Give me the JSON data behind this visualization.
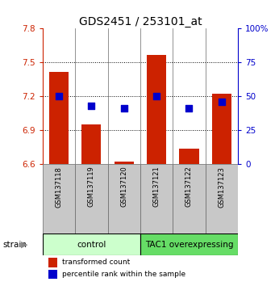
{
  "title": "GDS2451 / 253101_at",
  "samples": [
    "GSM137118",
    "GSM137119",
    "GSM137120",
    "GSM137121",
    "GSM137122",
    "GSM137123"
  ],
  "bar_values": [
    7.42,
    6.95,
    6.62,
    7.57,
    6.74,
    7.22
  ],
  "bar_bottom": 6.6,
  "percentile_values": [
    50,
    43,
    41,
    50,
    41,
    46
  ],
  "percentile_scale_min": 0,
  "percentile_scale_max": 100,
  "ylim_left": [
    6.6,
    7.8
  ],
  "yticks_left": [
    6.6,
    6.9,
    7.2,
    7.5,
    7.8
  ],
  "yticks_right": [
    0,
    25,
    50,
    75,
    100
  ],
  "yticks_right_labels": [
    "0",
    "25",
    "50",
    "75",
    "100%"
  ],
  "bar_color": "#CC2200",
  "dot_color": "#0000CC",
  "group1_label": "control",
  "group2_label": "TAC1 overexpressing",
  "group1_color": "#CCFFCC",
  "group2_color": "#66DD66",
  "legend_bar_label": "transformed count",
  "legend_dot_label": "percentile rank within the sample",
  "strain_label": "strain",
  "ylabel_left_color": "#CC2200",
  "ylabel_right_color": "#0000CC",
  "bg_color": "#FFFFFF",
  "title_fontsize": 10,
  "label_fontsize": 7,
  "sample_bg_color": "#C8C8C8",
  "sample_border_color": "#666666"
}
